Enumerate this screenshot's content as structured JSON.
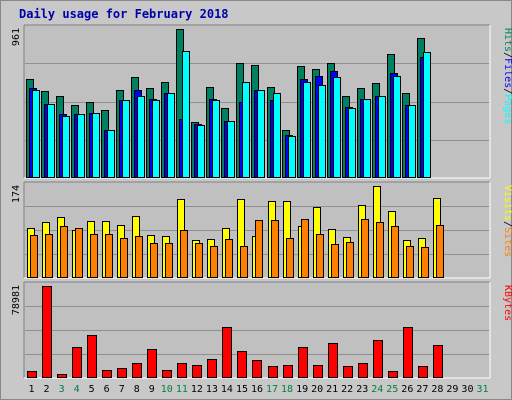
{
  "title": "Daily usage for February 2018",
  "chart_data": {
    "type": "bar",
    "x": [
      "1",
      "2",
      "3",
      "4",
      "5",
      "6",
      "7",
      "8",
      "9",
      "10",
      "11",
      "12",
      "13",
      "14",
      "15",
      "16",
      "17",
      "18",
      "19",
      "20",
      "21",
      "22",
      "23",
      "24",
      "25",
      "26",
      "27",
      "28",
      "29",
      "30",
      "31"
    ],
    "weekend_days": [
      "3",
      "4",
      "10",
      "11",
      "17",
      "18",
      "24",
      "25",
      "31"
    ],
    "colors": {
      "hits": "#008060",
      "files": "#0000ff",
      "pages": "#00ffff",
      "visits": "#ffff00",
      "sites": "#ff8000",
      "kbytes": "#ff0000",
      "background": "#c0c0c0",
      "tick_weekday": "#000000",
      "tick_weekend": "#008040"
    },
    "panels": [
      {
        "id": "hits-panel",
        "max_label": "961",
        "max": 961,
        "legend": [
          {
            "text": "Hits",
            "color": "#008060"
          },
          {
            "text": "/",
            "color": "#000000"
          },
          {
            "text": "Files",
            "color": "#0000ff"
          },
          {
            "text": "/",
            "color": "#000000"
          },
          {
            "text": "Pages",
            "color": "#00ffff"
          }
        ],
        "series": [
          {
            "name": "Hits",
            "color": "#008060",
            "values": [
              640,
              560,
              530,
              470,
              490,
              440,
              570,
              650,
              580,
              620,
              961,
              360,
              590,
              450,
              740,
              730,
              590,
              310,
              720,
              700,
              740,
              530,
              580,
              610,
              800,
              550,
              900,
              0,
              0,
              0,
              0
            ]
          },
          {
            "name": "Files",
            "color": "#0000ff",
            "values": [
              580,
              480,
              410,
              410,
              420,
              310,
              500,
              570,
              510,
              550,
              380,
              350,
              510,
              370,
              490,
              570,
              500,
              280,
              640,
              660,
              690,
              460,
              510,
              530,
              680,
              470,
              780,
              0,
              0,
              0,
              0
            ]
          },
          {
            "name": "Pages",
            "color": "#00ffff",
            "values": [
              570,
              480,
              400,
              410,
              420,
              310,
              500,
              530,
              500,
              550,
              820,
              340,
              500,
              370,
              620,
              570,
              550,
              270,
              620,
              600,
              650,
              450,
              510,
              530,
              660,
              470,
              810,
              0,
              0,
              0,
              0
            ]
          }
        ]
      },
      {
        "id": "visits-panel",
        "max_label": "174",
        "max": 174,
        "legend": [
          {
            "text": "Visits",
            "color": "#ffff00"
          },
          {
            "text": "/",
            "color": "#000000"
          },
          {
            "text": "Sites",
            "color": "#ff8000"
          }
        ],
        "series": [
          {
            "name": "Visits",
            "color": "#ffff00",
            "values": [
              95,
              105,
              116,
              91,
              108,
              108,
              100,
              118,
              82,
              80,
              150,
              72,
              74,
              94,
              150,
              80,
              145,
              145,
              98,
              134,
              92,
              78,
              138,
              174,
              127,
              72,
              75,
              152,
              0,
              0,
              0
            ]
          },
          {
            "name": "Sites",
            "color": "#ff8000",
            "values": [
              82,
              84,
              98,
              95,
              84,
              84,
              76,
              80,
              66,
              66,
              90,
              66,
              60,
              74,
              60,
              110,
              110,
              76,
              112,
              84,
              64,
              68,
              112,
              106,
              98,
              60,
              58,
              100,
              0,
              0,
              0
            ]
          }
        ]
      },
      {
        "id": "kbytes-panel",
        "max_label": "78981",
        "max": 78981,
        "legend": [
          {
            "text": "KBytes",
            "color": "#ff0000"
          }
        ],
        "series": [
          {
            "name": "KBytes",
            "color": "#ff0000",
            "values": [
              6000,
              78981,
              3500,
              26500,
              37000,
              7000,
              9000,
              12500,
              24500,
              7000,
              13000,
              11000,
              16500,
              44000,
              23000,
              15500,
              10500,
              11500,
              26500,
              11000,
              30000,
              10500,
              12500,
              33000,
              6000,
              44000,
              10500,
              28000,
              0,
              0,
              0
            ]
          }
        ]
      }
    ]
  }
}
